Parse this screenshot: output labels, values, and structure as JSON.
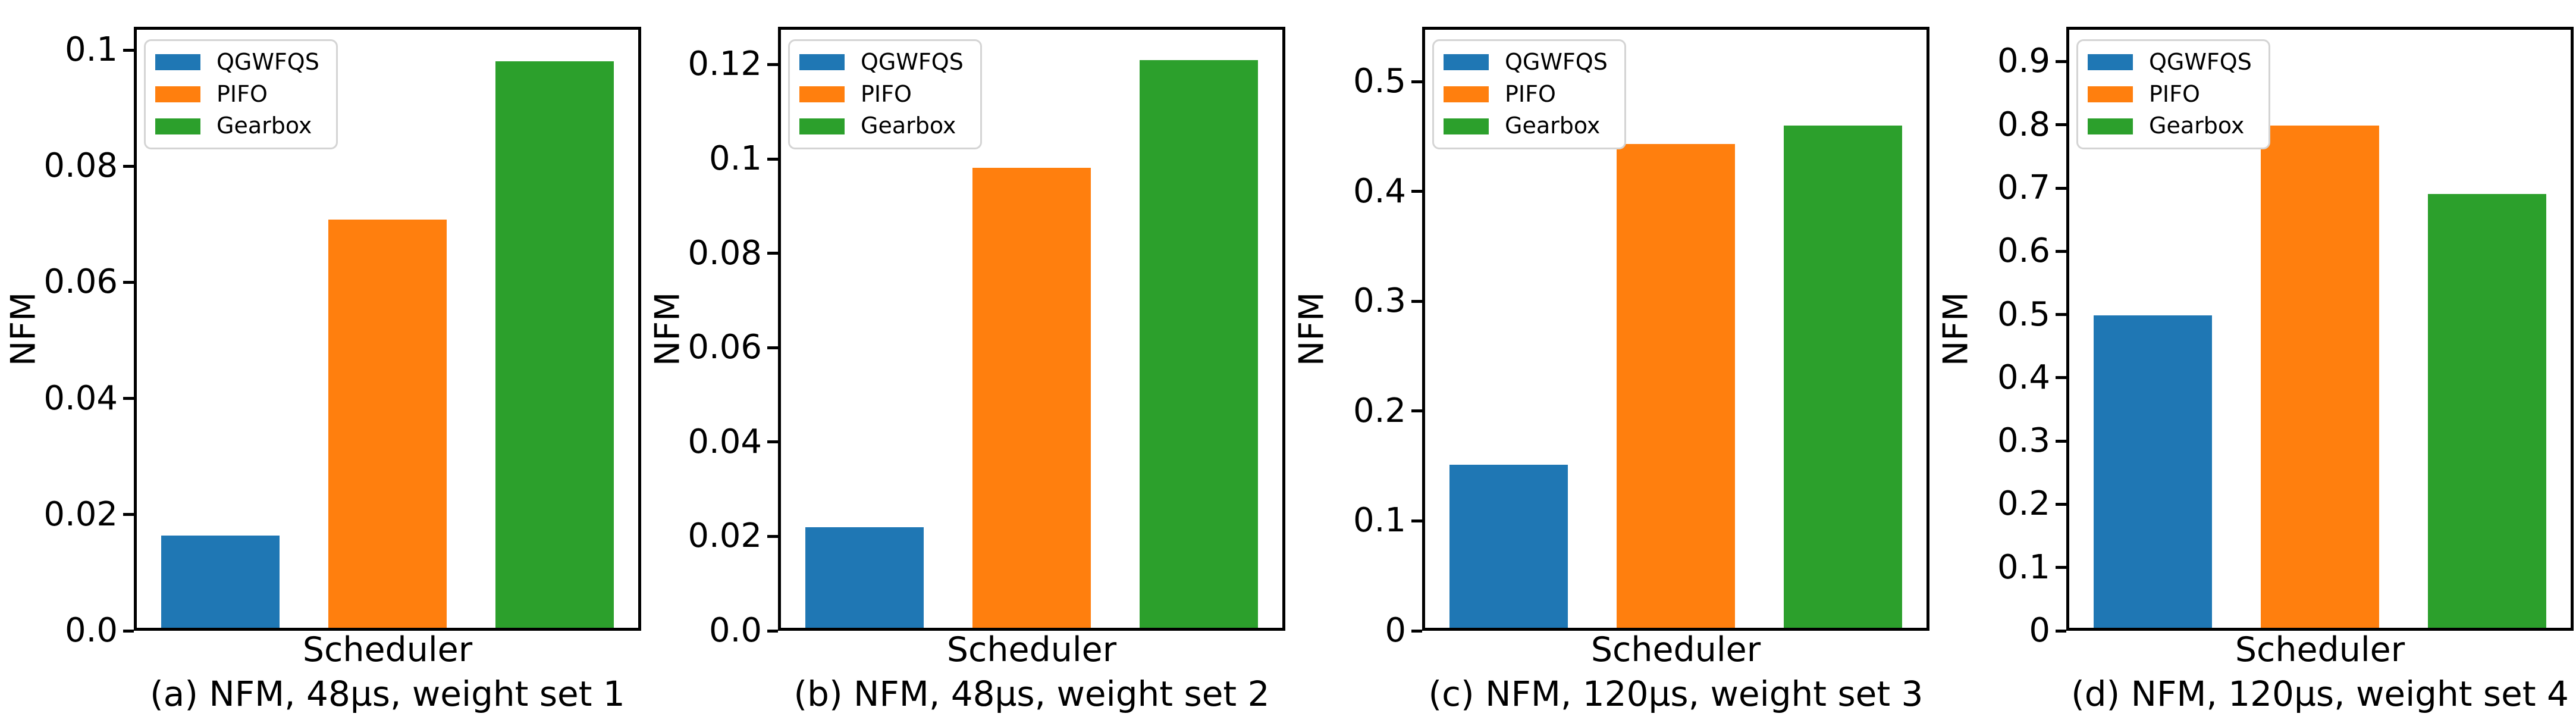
{
  "figure": {
    "background": "#ffffff",
    "ylabel": "NFM",
    "xlabel": "Scheduler",
    "legend": {
      "position": "upper left",
      "entries": [
        {
          "label": "QGWFQS",
          "color": "#1f77b4"
        },
        {
          "label": "PIFO",
          "color": "#ff7f0e"
        },
        {
          "label": "Gearbox",
          "color": "#2ca02c"
        }
      ]
    }
  },
  "chart_data": [
    {
      "type": "bar",
      "title": "(a) NFM, 48µs, weight set 1",
      "xlabel": "Scheduler",
      "ylabel": "NFM",
      "categories": [
        "QGWFQS",
        "PIFO",
        "Gearbox"
      ],
      "values": [
        0.016,
        0.071,
        0.0985
      ],
      "colors": [
        "#1f77b4",
        "#ff7f0e",
        "#2ca02c"
      ],
      "yticks": [
        0,
        0.02,
        0.04,
        0.06,
        0.08,
        0.1
      ],
      "ytick_labels": [
        "0.0",
        "0.02",
        "0.04",
        "0.06",
        "0.08",
        "0.1"
      ],
      "ylim": [
        0,
        0.104
      ],
      "grid": false,
      "legend_position": "upper left"
    },
    {
      "type": "bar",
      "title": "(b) NFM, 48µs, weight set 2",
      "xlabel": "Scheduler",
      "ylabel": "NFM",
      "categories": [
        "QGWFQS",
        "PIFO",
        "Gearbox"
      ],
      "values": [
        0.0215,
        0.0985,
        0.1215
      ],
      "colors": [
        "#1f77b4",
        "#ff7f0e",
        "#2ca02c"
      ],
      "yticks": [
        0,
        0.02,
        0.04,
        0.06,
        0.08,
        0.1,
        0.12
      ],
      "ytick_labels": [
        "0.0",
        "0.02",
        "0.04",
        "0.06",
        "0.08",
        "0.1",
        "0.12"
      ],
      "ylim": [
        0,
        0.128
      ],
      "grid": false,
      "legend_position": "upper left"
    },
    {
      "type": "bar",
      "title": "(c) NFM, 120µs, weight set 3",
      "xlabel": "Scheduler",
      "ylabel": "NFM",
      "categories": [
        "QGWFQS",
        "PIFO",
        "Gearbox"
      ],
      "values": [
        0.15,
        0.445,
        0.462
      ],
      "colors": [
        "#1f77b4",
        "#ff7f0e",
        "#2ca02c"
      ],
      "yticks": [
        0,
        0.1,
        0.2,
        0.3,
        0.4,
        0.5
      ],
      "ytick_labels": [
        "0",
        "0.1",
        "0.2",
        "0.3",
        "0.4",
        "0.5"
      ],
      "ylim": [
        0,
        0.55
      ],
      "grid": false,
      "legend_position": "upper left"
    },
    {
      "type": "bar",
      "title": "(d) NFM, 120µs, weight set 4",
      "xlabel": "Scheduler",
      "ylabel": "NFM",
      "categories": [
        "QGWFQS",
        "PIFO",
        "Gearbox"
      ],
      "values": [
        0.499,
        0.802,
        0.693
      ],
      "colors": [
        "#1f77b4",
        "#ff7f0e",
        "#2ca02c"
      ],
      "yticks": [
        0,
        0.1,
        0.2,
        0.3,
        0.4,
        0.5,
        0.6,
        0.7,
        0.8,
        0.9
      ],
      "ytick_labels": [
        "0",
        "0.1",
        "0.2",
        "0.3",
        "0.4",
        "0.5",
        "0.6",
        "0.7",
        "0.8",
        "0.9"
      ],
      "ylim": [
        0,
        0.955
      ],
      "grid": false,
      "legend_position": "upper left"
    }
  ]
}
